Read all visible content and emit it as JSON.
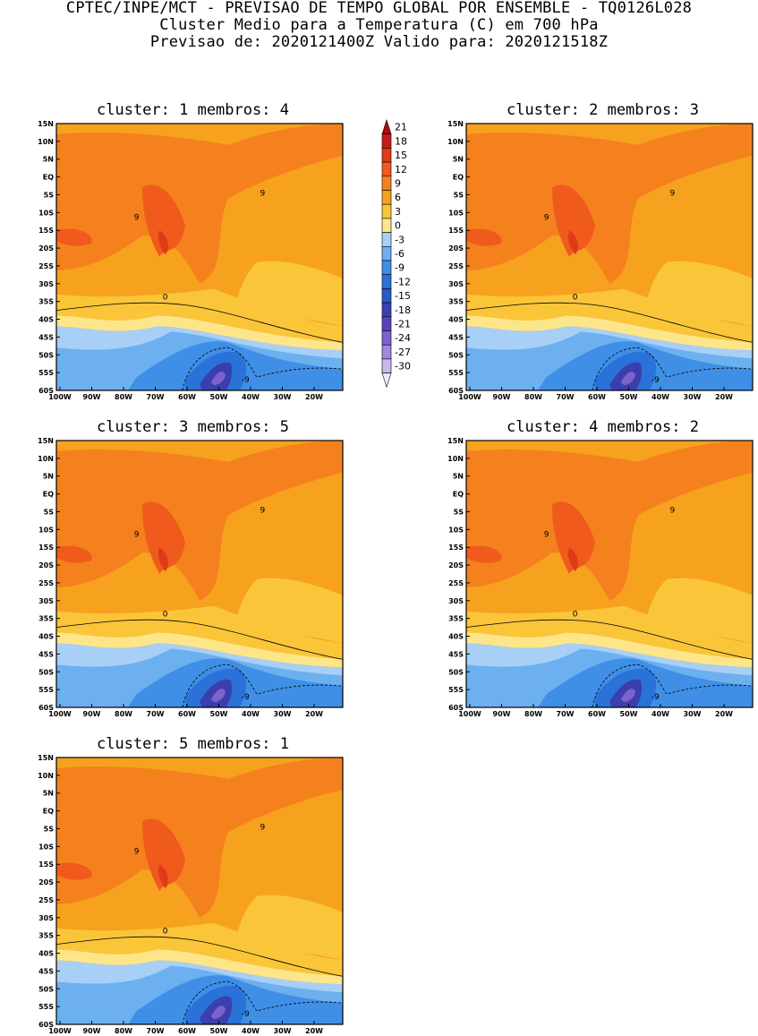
{
  "header": {
    "line1": "CPTEC/INPE/MCT - PREVISAO DE TEMPO GLOBAL POR ENSEMBLE - TQ0126L028",
    "line2": "Cluster Medio para a Temperatura (C) em 700 hPa",
    "line3": "Previsao de: 2020121400Z   Valido para: 2020121518Z"
  },
  "panels": [
    {
      "title": "cluster: 1  membros: 4"
    },
    {
      "title": "cluster: 2  membros: 3"
    },
    {
      "title": "cluster: 3  membros: 5"
    },
    {
      "title": "cluster: 4  membros: 2"
    },
    {
      "title": "cluster: 5  membros: 1"
    }
  ],
  "axes": {
    "lat_labels": [
      "15N",
      "10N",
      "5N",
      "EQ",
      "5S",
      "10S",
      "15S",
      "20S",
      "25S",
      "30S",
      "35S",
      "40S",
      "45S",
      "50S",
      "55S",
      "60S"
    ],
    "lon_labels": [
      "100W",
      "90W",
      "80W",
      "70W",
      "60W",
      "50W",
      "40W",
      "30W",
      "20W"
    ]
  },
  "colorbar": {
    "levels": [
      "21",
      "18",
      "15",
      "12",
      "9",
      "6",
      "3",
      "0",
      "-3",
      "-6",
      "-9",
      "-12",
      "-15",
      "-18",
      "-21",
      "-24",
      "-27",
      "-30"
    ],
    "colors": [
      "#a50f15",
      "#c8191e",
      "#e03a18",
      "#f05a1c",
      "#f4811e",
      "#f7a21e",
      "#fbc53a",
      "#fde68a",
      "#a8cff5",
      "#6cb0f0",
      "#3f8fe6",
      "#2a72d8",
      "#2a58c4",
      "#3b3fae",
      "#5a43b7",
      "#7c62cc",
      "#9f88dd",
      "#c7b8ee",
      "#efe8fb"
    ],
    "color_names": [
      "above 21",
      "18 to 21",
      "15 to 18",
      "12 to 15",
      "9 to 12",
      "6 to 9",
      "3 to 6",
      "0 to 3",
      "-3 to 0",
      "-6 to -3",
      "-9 to -6",
      "-12 to -9",
      "-15 to -12",
      "-18 to -15",
      "-21 to -18",
      "-24 to -21",
      "-27 to -24",
      "-30 to -27",
      "below -30"
    ]
  },
  "contour_labels": {
    "warm": "9",
    "zero": "0",
    "cold": "-9"
  }
}
